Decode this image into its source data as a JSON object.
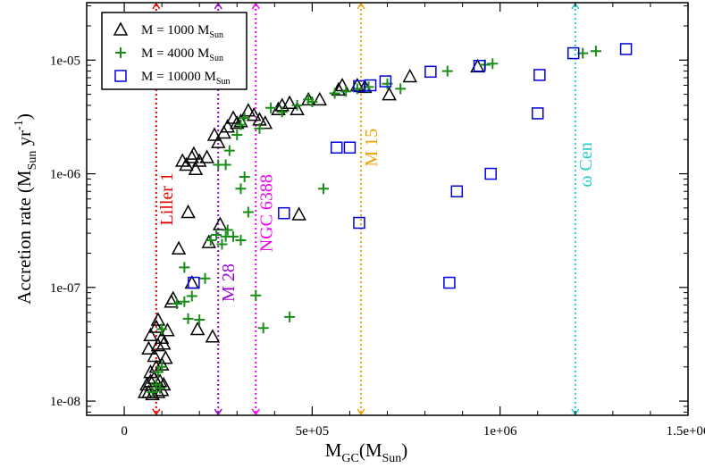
{
  "chart_data": {
    "type": "scatter",
    "xscale": "linear",
    "yscale": "log",
    "xlim": [
      -100000,
      1500000
    ],
    "ylim": [
      7.5e-09,
      3.2e-05
    ],
    "xticks": [
      {
        "value": 0,
        "label": "0"
      },
      {
        "value": 500000,
        "label": "5e+05"
      },
      {
        "value": 1000000,
        "label": "1e+06"
      },
      {
        "value": 1500000,
        "label": "1.5e+06"
      }
    ],
    "yticks": [
      {
        "value": 1e-08,
        "label": "1e-08"
      },
      {
        "value": 1e-07,
        "label": "1e-07"
      },
      {
        "value": 1e-06,
        "label": "1e-06"
      },
      {
        "value": 1e-05,
        "label": "1e-05"
      }
    ],
    "xlabel": {
      "main": "M",
      "sub": "GC",
      "paren_open": "(M",
      "paren_sub": "Sun",
      "paren_close": ")"
    },
    "ylabel": {
      "main": "Accretion rate (M",
      "sub": "Sun",
      "unit": " yr",
      "sup": "-1",
      "close": ")"
    },
    "legend": [
      {
        "name": "M = 1000 M",
        "sub": "Sun",
        "marker": "triangle",
        "color": "#000000"
      },
      {
        "name": "M = 4000 M",
        "sub": "Sun",
        "marker": "plus",
        "color": "#1a8c1a"
      },
      {
        "name": "M = 10000 M",
        "sub": "Sun",
        "marker": "square",
        "color": "#0000dd"
      }
    ],
    "vlines": [
      {
        "x": 85000,
        "label": "Liller 1",
        "color": "#ee0000",
        "label_y": 6e-07
      },
      {
        "x": 250000,
        "label": "M 28",
        "color": "#9900cc",
        "label_y": 1.1e-07
      },
      {
        "x": 350000,
        "label": "NGC 6388",
        "color": "#ee00ee",
        "label_y": 4.5e-07
      },
      {
        "x": 630000,
        "label": "M 15",
        "color": "#f0a000",
        "label_y": 1.7e-06
      },
      {
        "x": 1200000,
        "label": "ω Cen",
        "color": "#22cccc",
        "label_y": 1.2e-06
      }
    ],
    "series": [
      {
        "name": "M = 1000 M_Sun",
        "marker": "triangle",
        "color": "#000000",
        "points": [
          [
            55000,
            1.2e-08
          ],
          [
            65000,
            1.2e-08
          ],
          [
            75000,
            1.15e-08
          ],
          [
            90000,
            1.2e-08
          ],
          [
            100000,
            1.25e-08
          ],
          [
            60000,
            1.4e-08
          ],
          [
            70000,
            1.5e-08
          ],
          [
            80000,
            1.6e-08
          ],
          [
            95000,
            1.5e-08
          ],
          [
            105000,
            1.4e-08
          ],
          [
            70000,
            1.8e-08
          ],
          [
            85000,
            2e-08
          ],
          [
            100000,
            2.1e-08
          ],
          [
            80000,
            2.5e-08
          ],
          [
            110000,
            2.4e-08
          ],
          [
            65000,
            2.9e-08
          ],
          [
            90000,
            3.1e-08
          ],
          [
            105000,
            3.2e-08
          ],
          [
            70000,
            3.8e-08
          ],
          [
            100000,
            3.6e-08
          ],
          [
            85000,
            4.5e-08
          ],
          [
            115000,
            4.2e-08
          ],
          [
            90000,
            5.2e-08
          ],
          [
            125000,
            7.5e-08
          ],
          [
            130000,
            8e-08
          ],
          [
            145000,
            2.2e-07
          ],
          [
            170000,
            4.6e-07
          ],
          [
            180000,
            1.1e-07
          ],
          [
            195000,
            4.3e-08
          ],
          [
            235000,
            3.7e-08
          ],
          [
            225000,
            2.5e-07
          ],
          [
            255000,
            3.6e-07
          ],
          [
            155000,
            1.3e-06
          ],
          [
            165000,
            1.2e-06
          ],
          [
            180000,
            1.4e-06
          ],
          [
            185000,
            1.5e-06
          ],
          [
            190000,
            1.1e-06
          ],
          [
            200000,
            1.3e-06
          ],
          [
            220000,
            1.4e-06
          ],
          [
            240000,
            2.2e-06
          ],
          [
            250000,
            1.9e-06
          ],
          [
            265000,
            2.3e-06
          ],
          [
            275000,
            2.6e-06
          ],
          [
            290000,
            3.1e-06
          ],
          [
            300000,
            2.8e-06
          ],
          [
            310000,
            2.9e-06
          ],
          [
            330000,
            3.6e-06
          ],
          [
            345000,
            3.3e-06
          ],
          [
            360000,
            3e-06
          ],
          [
            375000,
            2.8e-06
          ],
          [
            410000,
            3.7e-06
          ],
          [
            420000,
            4e-06
          ],
          [
            440000,
            4.2e-06
          ],
          [
            460000,
            3.7e-06
          ],
          [
            490000,
            4.5e-06
          ],
          [
            520000,
            4.5e-06
          ],
          [
            570000,
            5.5e-06
          ],
          [
            580000,
            6e-06
          ],
          [
            620000,
            6e-06
          ],
          [
            640000,
            5.8e-06
          ],
          [
            705000,
            5e-06
          ],
          [
            760000,
            7.2e-06
          ],
          [
            940000,
            8.8e-06
          ],
          [
            465000,
            4.4e-07
          ]
        ]
      },
      {
        "name": "M = 4000 M_Sun",
        "marker": "plus",
        "color": "#1a8c1a",
        "points": [
          [
            75000,
            1.2e-08
          ],
          [
            85000,
            1.4e-08
          ],
          [
            95000,
            1.3e-08
          ],
          [
            90000,
            1.8e-08
          ],
          [
            100000,
            2e-08
          ],
          [
            100000,
            4.3e-08
          ],
          [
            140000,
            7.2e-08
          ],
          [
            160000,
            1.5e-07
          ],
          [
            160000,
            7.5e-08
          ],
          [
            170000,
            5.3e-08
          ],
          [
            180000,
            8.4e-08
          ],
          [
            200000,
            5.2e-08
          ],
          [
            215000,
            1.2e-07
          ],
          [
            230000,
            2.6e-07
          ],
          [
            245000,
            2.9e-07
          ],
          [
            260000,
            2.4e-07
          ],
          [
            270000,
            2.8e-07
          ],
          [
            275000,
            3.2e-07
          ],
          [
            290000,
            2.8e-07
          ],
          [
            310000,
            2.6e-07
          ],
          [
            330000,
            4.6e-07
          ],
          [
            350000,
            8.5e-08
          ],
          [
            370000,
            4.4e-08
          ],
          [
            440000,
            5.5e-08
          ],
          [
            250000,
            1.2e-06
          ],
          [
            270000,
            1.2e-06
          ],
          [
            280000,
            1.6e-06
          ],
          [
            300000,
            2.2e-06
          ],
          [
            310000,
            2.7e-06
          ],
          [
            320000,
            3.1e-06
          ],
          [
            310000,
            7.4e-07
          ],
          [
            320000,
            9.4e-07
          ],
          [
            360000,
            2.5e-06
          ],
          [
            390000,
            3.8e-06
          ],
          [
            420000,
            3.5e-06
          ],
          [
            460000,
            4e-06
          ],
          [
            490000,
            4.5e-06
          ],
          [
            500000,
            4.3e-06
          ],
          [
            530000,
            7.4e-07
          ],
          [
            560000,
            5.1e-06
          ],
          [
            590000,
            5.3e-06
          ],
          [
            620000,
            5.6e-06
          ],
          [
            650000,
            5.8e-06
          ],
          [
            700000,
            6.2e-06
          ],
          [
            735000,
            5.6e-06
          ],
          [
            860000,
            8e-06
          ],
          [
            960000,
            9.1e-06
          ],
          [
            980000,
            9.3e-06
          ],
          [
            1255000,
            1.2e-05
          ],
          [
            1220000,
            1.15e-05
          ]
        ]
      },
      {
        "name": "M = 10000 M_Sun",
        "marker": "square",
        "color": "#0000dd",
        "points": [
          [
            185000,
            1.1e-07
          ],
          [
            425000,
            4.5e-07
          ],
          [
            565000,
            1.7e-06
          ],
          [
            600000,
            1.7e-06
          ],
          [
            625000,
            3.7e-07
          ],
          [
            625000,
            5.9e-06
          ],
          [
            655000,
            6e-06
          ],
          [
            695000,
            6.5e-06
          ],
          [
            815000,
            7.9e-06
          ],
          [
            865000,
            1.1e-07
          ],
          [
            885000,
            7e-07
          ],
          [
            945000,
            8.9e-06
          ],
          [
            975000,
            1e-06
          ],
          [
            1100000,
            3.4e-06
          ],
          [
            1105000,
            7.4e-06
          ],
          [
            1195000,
            1.15e-05
          ],
          [
            1335000,
            1.25e-05
          ]
        ]
      }
    ]
  }
}
